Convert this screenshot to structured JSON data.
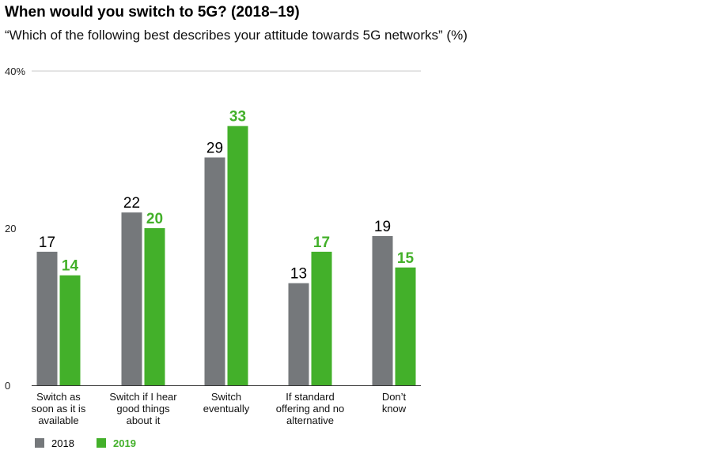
{
  "chart_data": {
    "type": "bar",
    "title": "When would you switch to 5G? (2018–19)",
    "subtitle": "“Which of the following best describes your attitude towards 5G networks” (%)",
    "xlabel": "",
    "ylabel": "",
    "ylim": [
      0,
      40
    ],
    "ytick_labels": [
      "0",
      "20",
      "40%"
    ],
    "yticks": [
      0,
      20,
      40
    ],
    "categories": [
      [
        "Switch as",
        "soon as it is",
        "available"
      ],
      [
        "Switch if I hear",
        "good things",
        "about it"
      ],
      [
        "Switch",
        "eventually"
      ],
      [
        "If standard",
        "offering and no",
        "alternative"
      ],
      [
        "Don’t",
        "know"
      ]
    ],
    "series": [
      {
        "name": "2018",
        "color": "#75787b",
        "label_color": "#000000",
        "bold": false,
        "values": [
          17,
          22,
          29,
          13,
          19
        ]
      },
      {
        "name": "2019",
        "color": "#43b02a",
        "label_color": "#43b02a",
        "bold": true,
        "values": [
          14,
          20,
          33,
          17,
          15
        ]
      }
    ],
    "legend_position": "bottom-left"
  }
}
